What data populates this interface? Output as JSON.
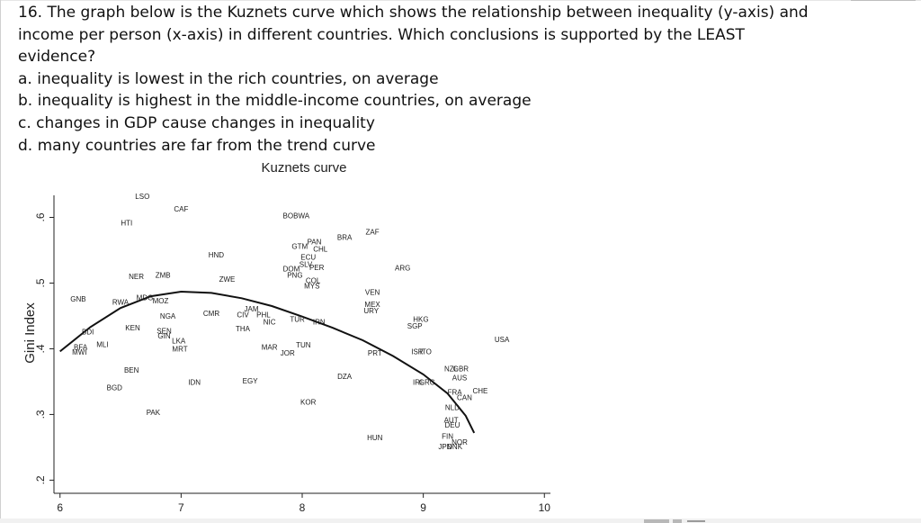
{
  "question": {
    "stem": "16. The graph below is the Kuznets curve which shows the relationship between inequality (y-axis) and income per person (x-axis) in different countries. Which conclusions is supported by the LEAST evidence?",
    "options": [
      "a. inequality is lowest in the rich countries, on average",
      "b. inequality is highest in the middle-income countries, on average",
      "c. changes in GDP cause changes in inequality",
      "d. many countries are far from the trend curve"
    ]
  },
  "chart_data": {
    "type": "scatter",
    "title": "Kuznets curve",
    "xlabel": "",
    "ylabel": "Gini Index",
    "xlim": [
      5.95,
      10.05
    ],
    "ylim": [
      0.18,
      0.65
    ],
    "x_ticks": [
      "6",
      "7",
      "8",
      "9",
      "10"
    ],
    "y_ticks": [
      ".2",
      ".3",
      ".4",
      ".5",
      ".6"
    ],
    "grid": false,
    "legend": "none",
    "colors": {
      "marks": "#1a1a1a",
      "curve": "#111111"
    },
    "trend_curve": [
      {
        "x": 6.0,
        "y": 0.396
      },
      {
        "x": 6.25,
        "y": 0.433
      },
      {
        "x": 6.5,
        "y": 0.462
      },
      {
        "x": 6.75,
        "y": 0.48
      },
      {
        "x": 7.0,
        "y": 0.487
      },
      {
        "x": 7.25,
        "y": 0.485
      },
      {
        "x": 7.5,
        "y": 0.477
      },
      {
        "x": 7.75,
        "y": 0.465
      },
      {
        "x": 8.0,
        "y": 0.449
      },
      {
        "x": 8.25,
        "y": 0.432
      },
      {
        "x": 8.5,
        "y": 0.413
      },
      {
        "x": 8.75,
        "y": 0.389
      },
      {
        "x": 9.0,
        "y": 0.361
      },
      {
        "x": 9.2,
        "y": 0.332
      },
      {
        "x": 9.35,
        "y": 0.298
      },
      {
        "x": 9.42,
        "y": 0.272
      }
    ],
    "points": [
      {
        "label": "LSO",
        "x": 6.68,
        "y": 0.632
      },
      {
        "label": "CAF",
        "x": 7.0,
        "y": 0.613
      },
      {
        "label": "HTI",
        "x": 6.55,
        "y": 0.592
      },
      {
        "label": "BOBWA",
        "x": 7.95,
        "y": 0.603
      },
      {
        "label": "ZAF",
        "x": 8.58,
        "y": 0.578
      },
      {
        "label": "BRA",
        "x": 8.35,
        "y": 0.57
      },
      {
        "label": "PAN",
        "x": 8.1,
        "y": 0.563
      },
      {
        "label": "CHL",
        "x": 8.15,
        "y": 0.552
      },
      {
        "label": "GTM",
        "x": 7.98,
        "y": 0.556
      },
      {
        "label": "ECU",
        "x": 8.05,
        "y": 0.54
      },
      {
        "label": "HND",
        "x": 7.29,
        "y": 0.543
      },
      {
        "label": "SLV",
        "x": 8.03,
        "y": 0.529
      },
      {
        "label": "PER",
        "x": 8.12,
        "y": 0.524
      },
      {
        "label": "DOM",
        "x": 7.91,
        "y": 0.522
      },
      {
        "label": "PNG",
        "x": 7.94,
        "y": 0.512
      },
      {
        "label": "COL",
        "x": 8.09,
        "y": 0.504
      },
      {
        "label": "MYS",
        "x": 8.08,
        "y": 0.496
      },
      {
        "label": "ARG",
        "x": 8.83,
        "y": 0.523
      },
      {
        "label": "NER",
        "x": 6.63,
        "y": 0.51
      },
      {
        "label": "ZMB",
        "x": 6.85,
        "y": 0.512
      },
      {
        "label": "ZWE",
        "x": 7.38,
        "y": 0.506
      },
      {
        "label": "GNB",
        "x": 6.15,
        "y": 0.476
      },
      {
        "label": "VEN",
        "x": 8.58,
        "y": 0.486
      },
      {
        "label": "MEX",
        "x": 8.58,
        "y": 0.468
      },
      {
        "label": "URY",
        "x": 8.57,
        "y": 0.458
      },
      {
        "label": "RWA",
        "x": 6.5,
        "y": 0.471
      },
      {
        "label": "MDG",
        "x": 6.7,
        "y": 0.478
      },
      {
        "label": "MOZ",
        "x": 6.83,
        "y": 0.473
      },
      {
        "label": "CMR",
        "x": 7.25,
        "y": 0.454
      },
      {
        "label": "JAM",
        "x": 7.58,
        "y": 0.461
      },
      {
        "label": "CIV",
        "x": 7.51,
        "y": 0.452
      },
      {
        "label": "PHL",
        "x": 7.68,
        "y": 0.452
      },
      {
        "label": "NGA",
        "x": 6.89,
        "y": 0.45
      },
      {
        "label": "NIC",
        "x": 7.73,
        "y": 0.441
      },
      {
        "label": "TUR",
        "x": 7.96,
        "y": 0.445
      },
      {
        "label": "IRN",
        "x": 8.14,
        "y": 0.441
      },
      {
        "label": "THA",
        "x": 7.51,
        "y": 0.431
      },
      {
        "label": "HKG",
        "x": 8.98,
        "y": 0.445
      },
      {
        "label": "SGP",
        "x": 8.93,
        "y": 0.435
      },
      {
        "label": "KEN",
        "x": 6.6,
        "y": 0.432
      },
      {
        "label": "BDI",
        "x": 6.23,
        "y": 0.426
      },
      {
        "label": "SEN",
        "x": 6.86,
        "y": 0.427
      },
      {
        "label": "GIN",
        "x": 6.86,
        "y": 0.42
      },
      {
        "label": "LKA",
        "x": 6.98,
        "y": 0.412
      },
      {
        "label": "MRT",
        "x": 6.99,
        "y": 0.4
      },
      {
        "label": "USA",
        "x": 9.65,
        "y": 0.414
      },
      {
        "label": "BFA",
        "x": 6.17,
        "y": 0.403
      },
      {
        "label": "MWI",
        "x": 6.16,
        "y": 0.395
      },
      {
        "label": "MLI",
        "x": 6.35,
        "y": 0.407
      },
      {
        "label": "MAR",
        "x": 7.73,
        "y": 0.403
      },
      {
        "label": "JOR",
        "x": 7.88,
        "y": 0.394
      },
      {
        "label": "TUN",
        "x": 8.01,
        "y": 0.406
      },
      {
        "label": "ISR",
        "x": 8.95,
        "y": 0.396
      },
      {
        "label": "ITO",
        "x": 9.02,
        "y": 0.396
      },
      {
        "label": "PRT",
        "x": 8.6,
        "y": 0.394
      },
      {
        "label": "BEN",
        "x": 6.59,
        "y": 0.368
      },
      {
        "label": "NZL",
        "x": 9.23,
        "y": 0.37
      },
      {
        "label": "GBR",
        "x": 9.31,
        "y": 0.37
      },
      {
        "label": "AUS",
        "x": 9.3,
        "y": 0.356
      },
      {
        "label": "DZA",
        "x": 8.35,
        "y": 0.358
      },
      {
        "label": "IDN",
        "x": 7.11,
        "y": 0.349
      },
      {
        "label": "EGY",
        "x": 7.57,
        "y": 0.351
      },
      {
        "label": "IRL",
        "x": 8.96,
        "y": 0.349
      },
      {
        "label": "GRC",
        "x": 9.03,
        "y": 0.349
      },
      {
        "label": "CHE",
        "x": 9.47,
        "y": 0.336
      },
      {
        "label": "BGD",
        "x": 6.45,
        "y": 0.341
      },
      {
        "label": "FRA",
        "x": 9.26,
        "y": 0.334
      },
      {
        "label": "CAN",
        "x": 9.34,
        "y": 0.326
      },
      {
        "label": "KOR",
        "x": 8.05,
        "y": 0.319
      },
      {
        "label": "NLD",
        "x": 9.24,
        "y": 0.311
      },
      {
        "label": "PAK",
        "x": 6.77,
        "y": 0.303
      },
      {
        "label": "AUT",
        "x": 9.23,
        "y": 0.292
      },
      {
        "label": "DEU",
        "x": 9.24,
        "y": 0.284
      },
      {
        "label": "HUN",
        "x": 8.6,
        "y": 0.265
      },
      {
        "label": "FIN",
        "x": 9.2,
        "y": 0.267
      },
      {
        "label": "NOR",
        "x": 9.3,
        "y": 0.258
      },
      {
        "label": "JPN",
        "x": 9.18,
        "y": 0.251
      },
      {
        "label": "DNK",
        "x": 9.26,
        "y": 0.251
      }
    ]
  }
}
